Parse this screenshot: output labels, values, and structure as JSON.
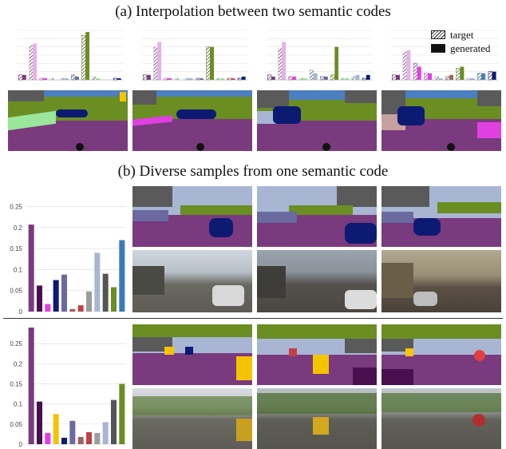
{
  "headings": {
    "a": "(a) Interpolation between two semantic codes",
    "b": "(b) Diverse samples from one semantic code"
  },
  "legend": {
    "target": "target",
    "generated": "generated"
  },
  "colors": {
    "purple": "#7a3a7e",
    "darkpurple": "#4a0f4f",
    "magenta": "#e040e0",
    "navy": "#0c1a72",
    "slate": "#6a6aa0",
    "mauve": "#a06060",
    "brick": "#c0404a",
    "gray": "#9c9c9c",
    "lightblue": "#a8b6d4",
    "darkgray": "#555555",
    "olive": "#6b8e23",
    "steelblue": "#3a7ab8",
    "yellow": "#f5c400",
    "lightgreen": "#9ae69a",
    "sky": "#4682b4"
  },
  "chart_data": [
    {
      "type": "bar",
      "id": "interp-1",
      "pairs": [
        {
          "color": "#7a3a7e",
          "target": 0.03,
          "generated": 0.03
        },
        {
          "color": "#e8b0e8",
          "target": 0.21,
          "generated": 0.22
        },
        {
          "color": "#e040e0",
          "target": 0.01,
          "generated": 0.01
        },
        {
          "color": "#9ae69a",
          "target": 0.01,
          "generated": 0.0
        },
        {
          "color": "#a8b6d4",
          "target": 0.01,
          "generated": 0.01
        },
        {
          "color": "#6a6aa0",
          "target": 0.03,
          "generated": 0.02
        },
        {
          "color": "#6b8e23",
          "target": 0.27,
          "generated": 0.29
        },
        {
          "color": "#9ae69a",
          "target": 0.02,
          "generated": 0.01
        },
        {
          "color": "#c0404a",
          "target": 0.0,
          "generated": 0.0
        },
        {
          "color": "#0c1a72",
          "target": 0.01,
          "generated": 0.01
        }
      ]
    },
    {
      "type": "bar",
      "id": "interp-2",
      "pairs": [
        {
          "color": "#7a3a7e",
          "target": 0.03,
          "generated": 0.03
        },
        {
          "color": "#e8b0e8",
          "target": 0.2,
          "generated": 0.23
        },
        {
          "color": "#e040e0",
          "target": 0.01,
          "generated": 0.01
        },
        {
          "color": "#9ae69a",
          "target": 0.01,
          "generated": 0.0
        },
        {
          "color": "#a8b6d4",
          "target": 0.01,
          "generated": 0.01
        },
        {
          "color": "#6a6aa0",
          "target": 0.01,
          "generated": 0.01
        },
        {
          "color": "#6b8e23",
          "target": 0.2,
          "generated": 0.2
        },
        {
          "color": "#9ae69a",
          "target": 0.01,
          "generated": 0.01
        },
        {
          "color": "#c0404a",
          "target": 0.01,
          "generated": 0.01
        },
        {
          "color": "#0c1a72",
          "target": 0.01,
          "generated": 0.02
        }
      ]
    },
    {
      "type": "bar",
      "id": "interp-3",
      "pairs": [
        {
          "color": "#7a3a7e",
          "target": 0.03,
          "generated": 0.02
        },
        {
          "color": "#e8b0e8",
          "target": 0.19,
          "generated": 0.23
        },
        {
          "color": "#e040e0",
          "target": 0.02,
          "generated": 0.02
        },
        {
          "color": "#9ae69a",
          "target": 0.01,
          "generated": 0.01
        },
        {
          "color": "#a8b6d4",
          "target": 0.06,
          "generated": 0.04
        },
        {
          "color": "#6a6aa0",
          "target": 0.02,
          "generated": 0.02
        },
        {
          "color": "#6b8e23",
          "target": 0.03,
          "generated": 0.2
        },
        {
          "color": "#9ae69a",
          "target": 0.01,
          "generated": 0.01
        },
        {
          "color": "#a8b6d4",
          "target": 0.02,
          "generated": 0.03
        },
        {
          "color": "#0c1a72",
          "target": 0.01,
          "generated": 0.03
        }
      ]
    },
    {
      "type": "bar",
      "id": "interp-4",
      "pairs": [
        {
          "color": "#7a3a7e",
          "target": 0.03,
          "generated": 0.03
        },
        {
          "color": "#e8b0e8",
          "target": 0.17,
          "generated": 0.18
        },
        {
          "color": "#e040e0",
          "target": 0.1,
          "generated": 0.08
        },
        {
          "color": "#e040e0",
          "target": 0.04,
          "generated": 0.04
        },
        {
          "color": "#a8b6d4",
          "target": 0.02,
          "generated": 0.01
        },
        {
          "color": "#a06060",
          "target": 0.02,
          "generated": 0.03
        },
        {
          "color": "#6b8e23",
          "target": 0.07,
          "generated": 0.08
        },
        {
          "color": "#a8b6d4",
          "target": 0.01,
          "generated": 0.01
        },
        {
          "color": "#4682b4",
          "target": 0.04,
          "generated": 0.04
        },
        {
          "color": "#0c1a72",
          "target": 0.05,
          "generated": 0.05
        }
      ]
    },
    {
      "type": "bar",
      "id": "diverse-1",
      "yticks": [
        "0",
        "0.05",
        "0.1",
        "0.15",
        "0.2",
        "0.25"
      ],
      "ylim": [
        0,
        0.27
      ],
      "bars": [
        {
          "color": "#7a3a7e",
          "value": 0.207
        },
        {
          "color": "#4a0f4f",
          "value": 0.062
        },
        {
          "color": "#e040e0",
          "value": 0.018
        },
        {
          "color": "#0c1a72",
          "value": 0.075
        },
        {
          "color": "#6a6aa0",
          "value": 0.088
        },
        {
          "color": "#a06060",
          "value": 0.006
        },
        {
          "color": "#c0404a",
          "value": 0.015
        },
        {
          "color": "#9c9c9c",
          "value": 0.048
        },
        {
          "color": "#a8b6d4",
          "value": 0.14
        },
        {
          "color": "#555555",
          "value": 0.09
        },
        {
          "color": "#6b8e23",
          "value": 0.058
        },
        {
          "color": "#3a7ab8",
          "value": 0.17
        }
      ]
    },
    {
      "type": "bar",
      "id": "diverse-2",
      "yticks": [
        "0",
        "0.05",
        "0.1",
        "0.15",
        "0.2",
        "0.25"
      ],
      "ylim": [
        0,
        0.29
      ],
      "bars": [
        {
          "color": "#7a3a7e",
          "value": 0.29
        },
        {
          "color": "#4a0f4f",
          "value": 0.106
        },
        {
          "color": "#e040e0",
          "value": 0.028
        },
        {
          "color": "#f5c400",
          "value": 0.075
        },
        {
          "color": "#0c1a72",
          "value": 0.016
        },
        {
          "color": "#6a6aa0",
          "value": 0.058
        },
        {
          "color": "#a06060",
          "value": 0.018
        },
        {
          "color": "#c0404a",
          "value": 0.03
        },
        {
          "color": "#9c9c9c",
          "value": 0.028
        },
        {
          "color": "#a8b6d4",
          "value": 0.055
        },
        {
          "color": "#555555",
          "value": 0.11
        },
        {
          "color": "#6b8e23",
          "value": 0.15
        }
      ]
    }
  ]
}
